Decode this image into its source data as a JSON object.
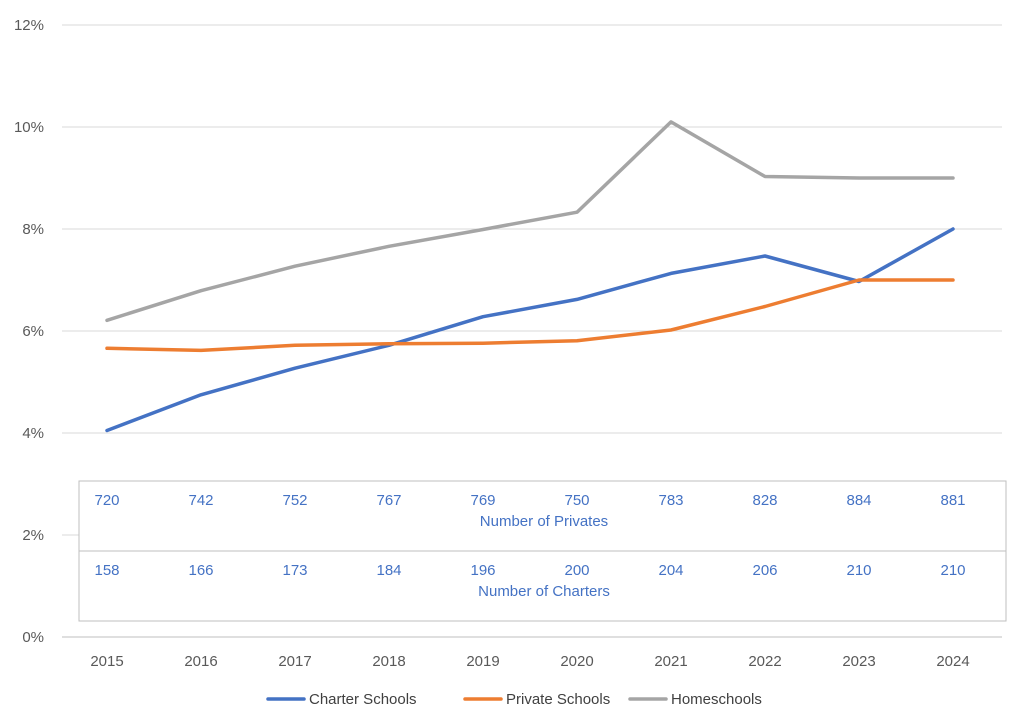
{
  "chart_data": {
    "type": "line",
    "categories": [
      "2015",
      "2016",
      "2017",
      "2018",
      "2019",
      "2020",
      "2021",
      "2022",
      "2023",
      "2024"
    ],
    "y_ticks": [
      "0%",
      "2%",
      "4%",
      "6%",
      "8%",
      "10%",
      "12%"
    ],
    "ylim": [
      0,
      12
    ],
    "grid": true,
    "legend_position": "bottom",
    "series": [
      {
        "name": "Charter Schools",
        "color": "#4472c4",
        "values": [
          4.05,
          4.75,
          5.27,
          5.72,
          6.28,
          6.62,
          7.13,
          7.47,
          6.97,
          8.0
        ]
      },
      {
        "name": "Private Schools",
        "color": "#ed7d31",
        "values": [
          5.66,
          5.62,
          5.72,
          5.75,
          5.76,
          5.81,
          6.02,
          6.48,
          7.0,
          7.0
        ]
      },
      {
        "name": "Homeschools",
        "color": "#a5a5a5",
        "values": [
          6.21,
          6.79,
          7.27,
          7.66,
          7.99,
          8.33,
          10.1,
          9.03,
          9.0,
          9.0
        ]
      }
    ],
    "data_table": [
      {
        "label": "Number of Privates",
        "values": [
          "720",
          "742",
          "752",
          "767",
          "769",
          "750",
          "783",
          "828",
          "884",
          "881"
        ]
      },
      {
        "label": "Number of Charters",
        "values": [
          "158",
          "166",
          "173",
          "184",
          "196",
          "200",
          "204",
          "206",
          "210",
          "210"
        ]
      }
    ]
  }
}
